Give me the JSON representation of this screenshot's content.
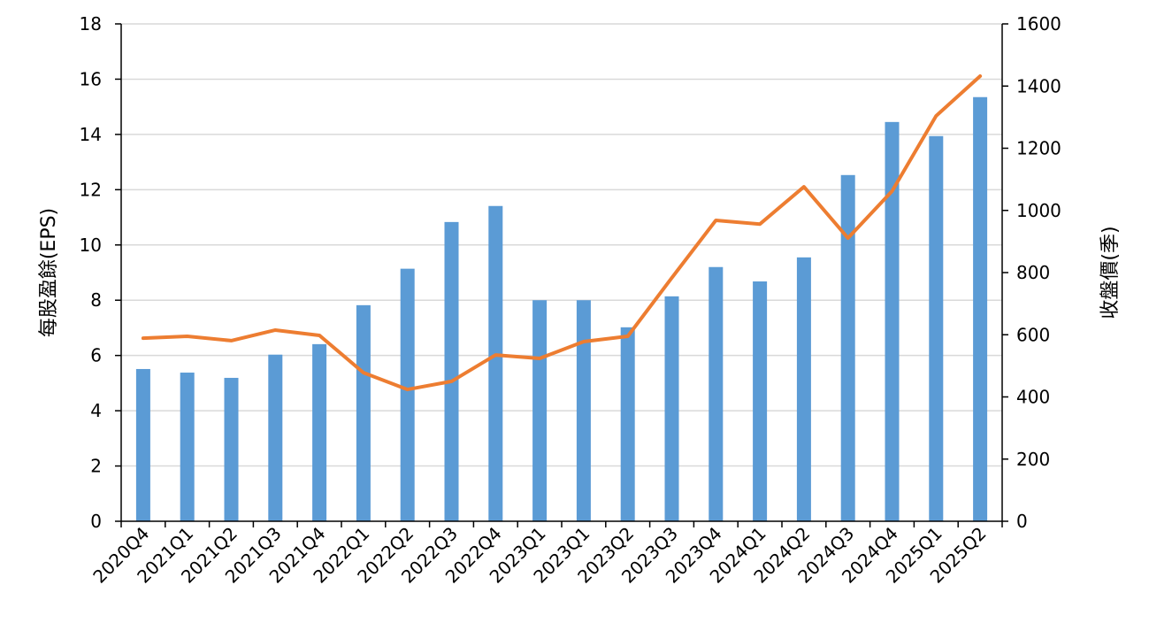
{
  "chart_data": {
    "type": "bar+line",
    "title": "",
    "categories": [
      "2020Q4",
      "2021Q1",
      "2021Q2",
      "2021Q3",
      "2021Q4",
      "2022Q1",
      "2022Q2",
      "2022Q3",
      "2022Q4",
      "2023Q1",
      "2023Q1",
      "2023Q2",
      "2023Q3",
      "2023Q4",
      "2024Q1",
      "2024Q2",
      "2024Q3",
      "2024Q4",
      "2025Q1",
      "2025Q2"
    ],
    "series": [
      {
        "name": "每股盈餘(EPS)",
        "type": "bar",
        "axis": "left",
        "color": "#5b9bd5",
        "values": [
          5.51,
          5.38,
          5.19,
          6.03,
          6.41,
          7.82,
          9.14,
          10.83,
          11.41,
          8.0,
          8.0,
          7.02,
          8.14,
          9.2,
          8.68,
          9.55,
          12.53,
          14.45,
          13.94,
          15.35
        ]
      },
      {
        "name": "收盤價(季)",
        "type": "line",
        "axis": "right",
        "color": "#ed7d31",
        "values": [
          589,
          595,
          581,
          615,
          598,
          478,
          424,
          450,
          535,
          524,
          578,
          595,
          783,
          968,
          956,
          1076,
          911,
          1062,
          1304,
          1432
        ]
      }
    ],
    "ylabel": "每股盈餘(EPS)",
    "y2label": "收盤價(季)",
    "ylim": [
      0,
      18
    ],
    "y2lim": [
      0,
      1600
    ],
    "yticks": [
      "0",
      "2",
      "4",
      "6",
      "8",
      "10",
      "12",
      "14",
      "16",
      "18"
    ],
    "y2ticks": [
      "0",
      "200",
      "400",
      "600",
      "800",
      "1000",
      "1200",
      "1400",
      "1600"
    ],
    "grid": true,
    "legend": "none"
  }
}
